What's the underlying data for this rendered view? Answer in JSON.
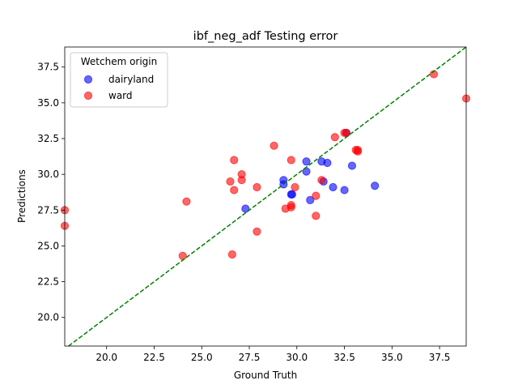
{
  "chart_data": {
    "type": "scatter",
    "title": "ibf_neg_adf Testing error",
    "xlabel": "Ground Truth",
    "ylabel": "Predictions",
    "xlim": [
      17.8,
      38.9
    ],
    "ylim": [
      18.0,
      38.9
    ],
    "xticks": [
      "20.0",
      "22.5",
      "25.0",
      "27.5",
      "30.0",
      "32.5",
      "35.0",
      "37.5"
    ],
    "xtick_values": [
      20.0,
      22.5,
      25.0,
      27.5,
      30.0,
      32.5,
      35.0,
      37.5
    ],
    "yticks": [
      "20.0",
      "22.5",
      "25.0",
      "27.5",
      "30.0",
      "32.5",
      "35.0",
      "37.5"
    ],
    "ytick_values": [
      20.0,
      22.5,
      25.0,
      27.5,
      30.0,
      32.5,
      35.0,
      37.5
    ],
    "legend": {
      "title": "Wetchem origin",
      "placement": "top-left"
    },
    "reference_line": {
      "style": "dashed",
      "color": "#008000",
      "slope": 1,
      "intercept": 0
    },
    "series": [
      {
        "name": "dairyland",
        "color": "#0000ff",
        "points": [
          [
            27.3,
            27.6
          ],
          [
            29.3,
            29.3
          ],
          [
            29.3,
            29.6
          ],
          [
            29.7,
            28.6
          ],
          [
            29.75,
            28.6
          ],
          [
            30.5,
            30.2
          ],
          [
            30.5,
            30.9
          ],
          [
            30.7,
            28.2
          ],
          [
            31.3,
            30.9
          ],
          [
            31.4,
            29.5
          ],
          [
            31.6,
            30.8
          ],
          [
            31.9,
            29.1
          ],
          [
            32.5,
            28.9
          ],
          [
            32.9,
            30.6
          ],
          [
            32.6,
            32.9
          ],
          [
            34.1,
            29.2
          ]
        ]
      },
      {
        "name": "ward",
        "color": "#ff0000",
        "points": [
          [
            17.8,
            27.5
          ],
          [
            17.8,
            26.4
          ],
          [
            24.0,
            24.3
          ],
          [
            24.2,
            28.1
          ],
          [
            26.6,
            24.4
          ],
          [
            26.5,
            29.5
          ],
          [
            26.7,
            28.9
          ],
          [
            26.7,
            31.0
          ],
          [
            27.1,
            30.0
          ],
          [
            27.1,
            29.6
          ],
          [
            27.9,
            26.0
          ],
          [
            27.9,
            29.1
          ],
          [
            28.8,
            32.0
          ],
          [
            29.4,
            27.6
          ],
          [
            29.7,
            27.7
          ],
          [
            29.7,
            27.85
          ],
          [
            29.7,
            31.0
          ],
          [
            29.9,
            29.1
          ],
          [
            31.0,
            28.5
          ],
          [
            31.0,
            27.1
          ],
          [
            31.3,
            29.6
          ],
          [
            32.0,
            32.6
          ],
          [
            32.5,
            32.9
          ],
          [
            32.6,
            32.9
          ],
          [
            33.1,
            31.7
          ],
          [
            33.2,
            31.6
          ],
          [
            33.2,
            31.7
          ],
          [
            37.2,
            37.0
          ],
          [
            38.9,
            35.3
          ]
        ]
      }
    ]
  }
}
